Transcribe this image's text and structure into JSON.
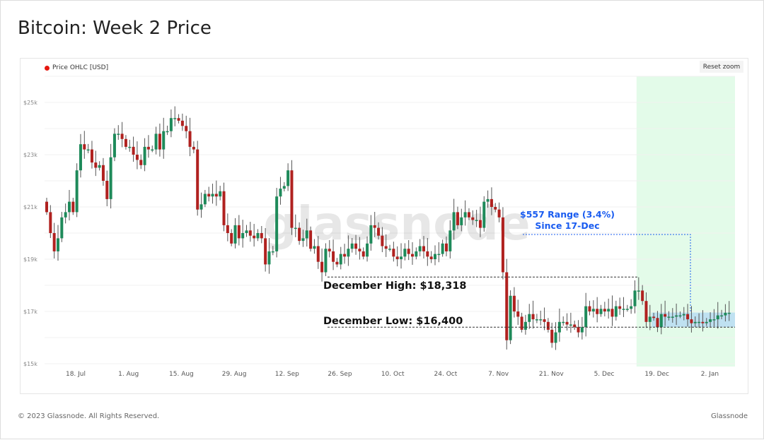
{
  "title": "Bitcoin: Week 2 Price",
  "legend": {
    "label": "Price OHLC [USD]",
    "color": "#e5170f"
  },
  "reset_zoom": "Reset zoom",
  "footer": {
    "copyright": "© 2023 Glassnode. All Rights Reserved.",
    "brand": "Glassnode"
  },
  "watermark": "glassnode",
  "chart_data": {
    "type": "candlestick",
    "start_date": "2022-07-10",
    "interval": "1 day",
    "ylim": [
      15000,
      26000
    ],
    "y_ticks": [
      {
        "v": 15000,
        "label": "$15k"
      },
      {
        "v": 17000,
        "label": "$17k"
      },
      {
        "v": 19000,
        "label": "$19k"
      },
      {
        "v": 21000,
        "label": "$21k"
      },
      {
        "v": 23000,
        "label": "$23k"
      },
      {
        "v": 25000,
        "label": "$25k"
      }
    ],
    "x_ticks": [
      "18. Jul",
      "1. Aug",
      "15. Aug",
      "29. Aug",
      "12. Sep",
      "26. Sep",
      "10. Oct",
      "24. Oct",
      "7. Nov",
      "21. Nov",
      "5. Dec",
      "19. Dec",
      "2. Jan"
    ],
    "grid": true,
    "up_color": "#1e8a5a",
    "down_color": "#b0211f",
    "close": [
      20800,
      20000,
      19300,
      19800,
      20600,
      20800,
      21200,
      20800,
      22400,
      23400,
      23200,
      23200,
      22700,
      22500,
      22600,
      22000,
      21300,
      22900,
      23800,
      23800,
      23600,
      23300,
      23300,
      23000,
      22800,
      22600,
      23300,
      23200,
      23200,
      23800,
      23200,
      23900,
      23900,
      24400,
      24400,
      24300,
      24100,
      23900,
      23300,
      23200,
      20900,
      21100,
      21500,
      21400,
      21500,
      21400,
      21600,
      20300,
      20000,
      19600,
      20300,
      19800,
      20000,
      20100,
      19900,
      19800,
      20000,
      19800,
      18800,
      19300,
      19300,
      21400,
      21700,
      21800,
      22400,
      20200,
      20200,
      19700,
      19800,
      20100,
      19400,
      19500,
      18900,
      18500,
      19400,
      19300,
      18900,
      18800,
      19200,
      19100,
      19400,
      19600,
      19400,
      19300,
      19100,
      19600,
      20300,
      20200,
      19900,
      19500,
      19400,
      19400,
      19100,
      19000,
      19100,
      19400,
      19200,
      19100,
      19300,
      19500,
      19300,
      19100,
      19000,
      19200,
      19200,
      19600,
      19300,
      20100,
      20800,
      20300,
      20600,
      20800,
      20600,
      20500,
      20500,
      20200,
      21200,
      21300,
      21000,
      20900,
      20600,
      18500,
      15900,
      17600,
      17000,
      16800,
      16300,
      16600,
      16900,
      16700,
      16700,
      16700,
      16600,
      16300,
      15800,
      16200,
      16600,
      16600,
      16500,
      16500,
      16400,
      16200,
      16400,
      17200,
      17000,
      17100,
      16900,
      17100,
      17000,
      17100,
      16800,
      17200,
      17100,
      17100,
      17100,
      17200,
      17800,
      17800,
      17400,
      16600,
      16800,
      16750,
      16400,
      16900,
      16800,
      16800,
      16800,
      16850,
      16850,
      16900,
      16700,
      16550,
      16600,
      16600,
      16550,
      16600,
      16700,
      16700,
      16850,
      16850,
      16950,
      16950
    ],
    "annotations": [
      {
        "text": "December High: $18,318",
        "value": 18318
      },
      {
        "text": "December Low: $16,400",
        "value": 16400
      },
      {
        "text": "$557 Range (3.4%)",
        "text2": "Since 17-Dec",
        "color": "#1a5cf0"
      }
    ],
    "highlight": {
      "from": "2022-12-14",
      "to": "2023-01-07",
      "color": "#e3fbe9"
    },
    "range_band": {
      "from": "2022-12-18",
      "low": 16400,
      "high": 16957,
      "color": "#b9dcf2"
    }
  }
}
